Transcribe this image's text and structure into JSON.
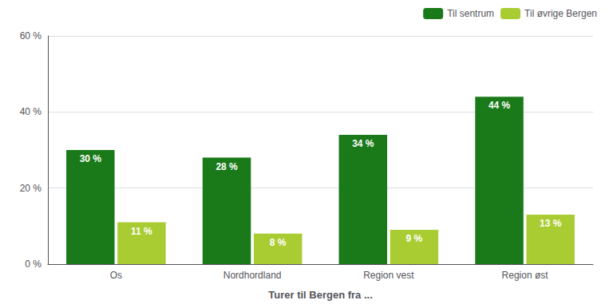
{
  "chart_data": {
    "type": "bar",
    "xlabel": "Turer til Bergen fra ...",
    "categories": [
      "Os",
      "Nordhordland",
      "Region vest",
      "Region øst"
    ],
    "series": [
      {
        "name": "Til sentrum",
        "color": "#1a7a1a",
        "values": [
          30,
          28,
          34,
          44
        ],
        "value_labels": [
          "30 %",
          "28 %",
          "34 %",
          "44 %"
        ]
      },
      {
        "name": "Til øvrige Bergen",
        "color": "#aacc33",
        "values": [
          11,
          8,
          9,
          13
        ],
        "value_labels": [
          "11 %",
          "8 %",
          "9 %",
          "13 %"
        ]
      }
    ],
    "ylim": [
      0,
      60
    ],
    "yticks": [
      {
        "value": 0,
        "label": "0 %"
      },
      {
        "value": 20,
        "label": "20 %"
      },
      {
        "value": 40,
        "label": "40 %"
      },
      {
        "value": 60,
        "label": "60 %"
      }
    ],
    "grid": true,
    "legend": "upper right",
    "data_labels": true
  }
}
